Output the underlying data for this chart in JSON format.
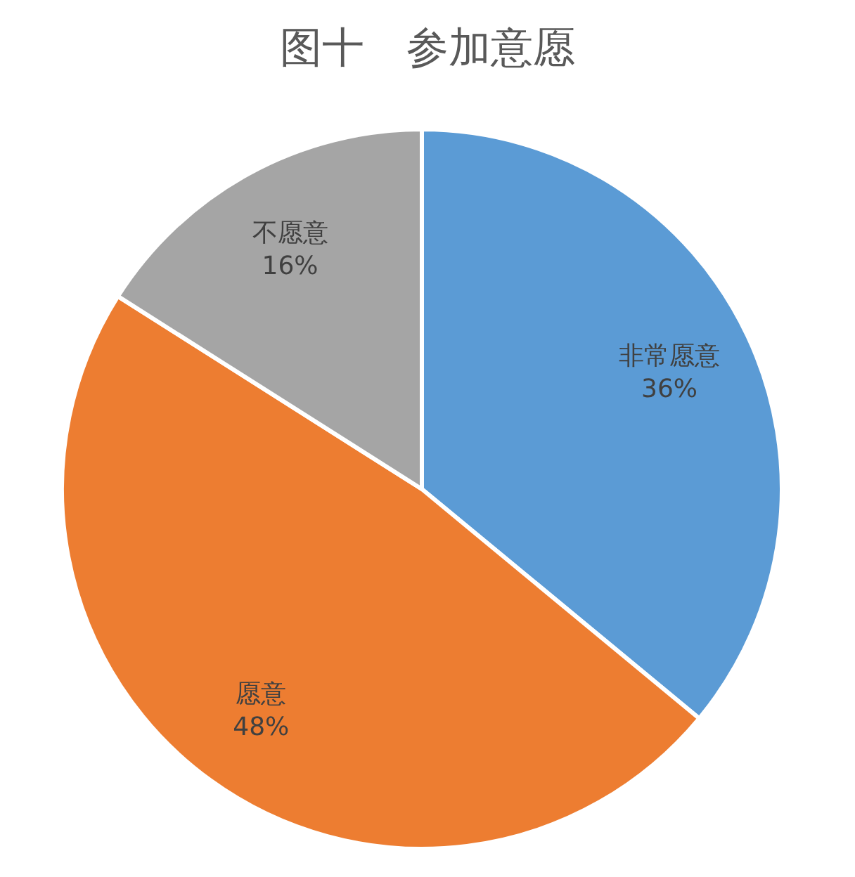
{
  "chart_data": {
    "type": "pie",
    "title": "图十　参加意愿",
    "categories": [
      "非常愿意",
      "愿意",
      "不愿意"
    ],
    "values": [
      36,
      48,
      16
    ],
    "colors": [
      "#5b9bd5",
      "#ed7d31",
      "#a5a5a5"
    ],
    "value_labels": [
      "36%",
      "48%",
      "16%"
    ]
  }
}
